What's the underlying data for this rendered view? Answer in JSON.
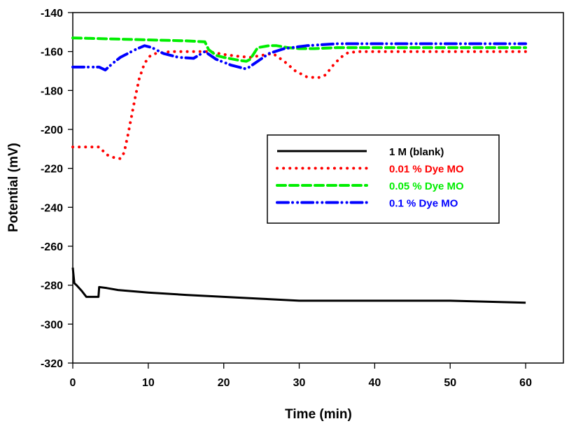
{
  "chart_data": {
    "type": "line",
    "title": "",
    "xlabel": "Time (min)",
    "ylabel": "Potential (mV)",
    "xlim": [
      0,
      65
    ],
    "ylim": [
      -320,
      -140
    ],
    "xticks": [
      0,
      10,
      20,
      30,
      40,
      50,
      60
    ],
    "yticks": [
      -320,
      -300,
      -280,
      -260,
      -240,
      -220,
      -200,
      -180,
      -160,
      -140
    ],
    "grid": false,
    "legend_position": "center-right",
    "series": [
      {
        "name": "1 M (blank)",
        "color": "#000000",
        "style": "solid",
        "x": [
          0,
          0.2,
          0.5,
          1.2,
          1.8,
          2.5,
          3.4,
          3.5,
          4.5,
          6,
          10,
          15,
          20,
          25,
          30,
          40,
          50,
          60
        ],
        "y": [
          -271,
          -279,
          -280,
          -283,
          -286,
          -286,
          -286,
          -281,
          -281.5,
          -282.5,
          -283.8,
          -285,
          -286,
          -287,
          -288,
          -288,
          -288,
          -289
        ]
      },
      {
        "name": "0.01 % Dye MO",
        "color": "#ff0000",
        "style": "dotted",
        "x": [
          0,
          3.5,
          4.5,
          5.5,
          6.3,
          6.8,
          7.3,
          7.8,
          8.3,
          8.8,
          9.5,
          10.3,
          11,
          13,
          15,
          18,
          20,
          22,
          23.5,
          25,
          26.5,
          28,
          29.5,
          31,
          32.5,
          33.5,
          34.5,
          35.5,
          36.5,
          38,
          40,
          50,
          60
        ],
        "y": [
          -209,
          -209,
          -213,
          -214.5,
          -215,
          -212,
          -203,
          -193,
          -183,
          -174,
          -166,
          -162,
          -161,
          -160,
          -160,
          -160,
          -161.5,
          -162.5,
          -163,
          -162,
          -161,
          -165,
          -170,
          -173,
          -173.5,
          -172,
          -167,
          -163,
          -160.5,
          -160,
          -160,
          -160,
          -160
        ]
      },
      {
        "name": "0.05 % Dye MO",
        "color": "#00ee00",
        "style": "dashed",
        "x": [
          0,
          5,
          10,
          15,
          17.5,
          18,
          19,
          20,
          22,
          23,
          23.5,
          24.5,
          26,
          27,
          28.5,
          30,
          32,
          35,
          40,
          50,
          60
        ],
        "y": [
          -153,
          -153.5,
          -154,
          -154.5,
          -155,
          -159,
          -162,
          -163,
          -164.5,
          -165,
          -164,
          -158,
          -157,
          -157,
          -158,
          -158.5,
          -158.5,
          -158,
          -158,
          -158,
          -158
        ]
      },
      {
        "name": "0.1 % Dye MO",
        "color": "#0000ff",
        "style": "dash-dot-dot",
        "x": [
          0,
          3.5,
          4.3,
          5.3,
          6.3,
          7.3,
          8.3,
          9.5,
          10.5,
          12,
          14,
          16,
          17.5,
          19,
          21,
          23,
          24.5,
          26,
          28,
          31,
          35,
          40,
          50,
          60
        ],
        "y": [
          -168,
          -168,
          -169.5,
          -166,
          -163,
          -161,
          -159,
          -157,
          -158,
          -161,
          -163,
          -163.5,
          -160,
          -164,
          -167,
          -169,
          -165,
          -161,
          -158.5,
          -157,
          -156,
          -156,
          -156,
          -156
        ]
      }
    ]
  }
}
